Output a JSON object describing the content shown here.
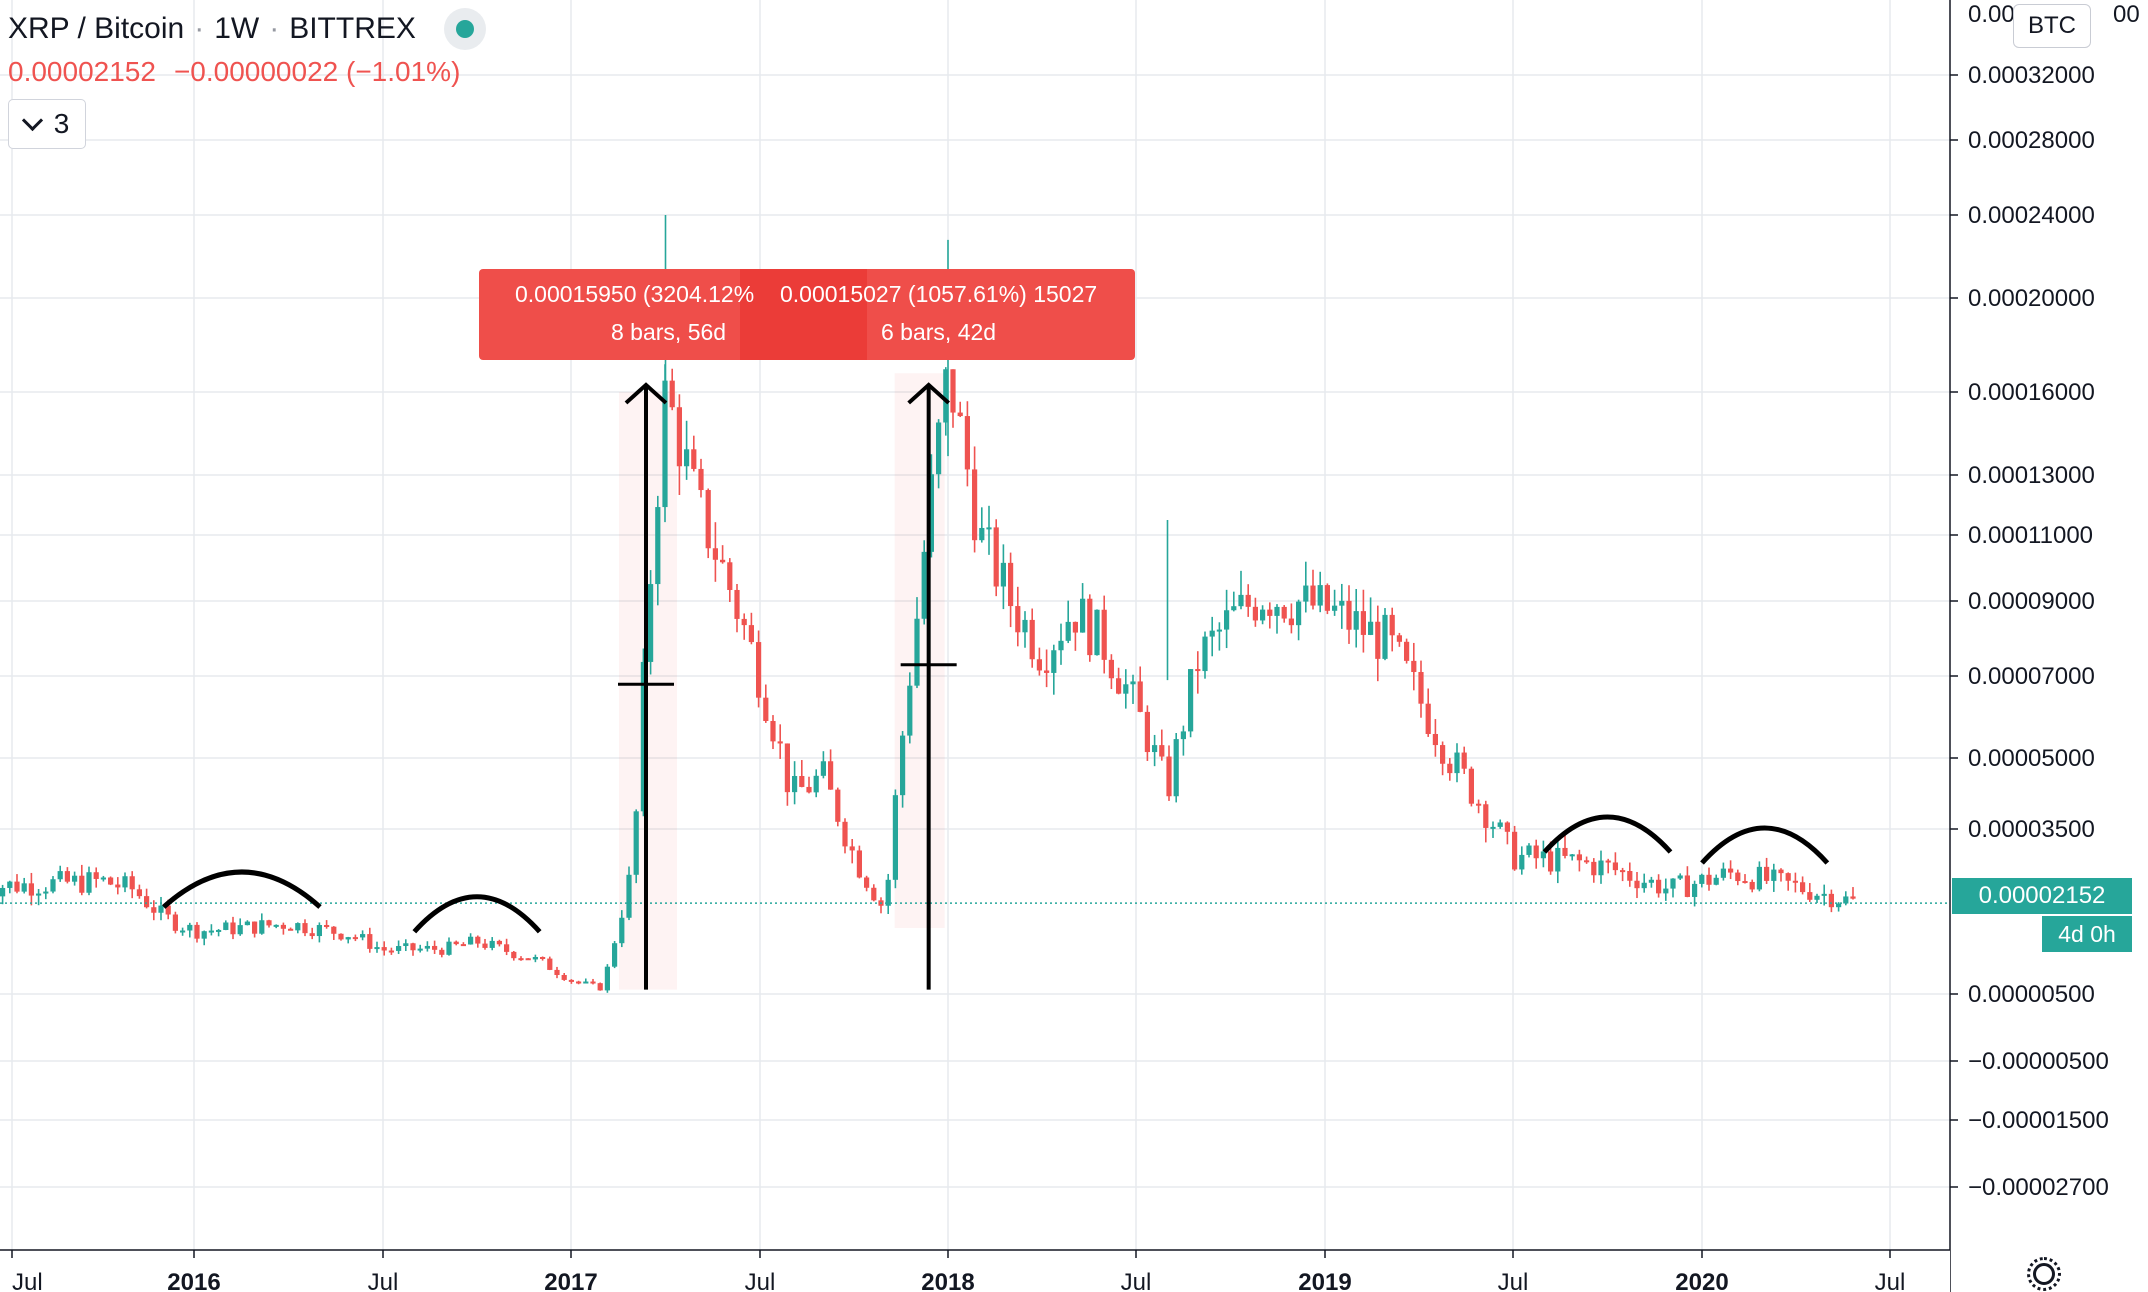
{
  "header": {
    "symbol": "XRP / Bitcoin",
    "interval": "1W",
    "exchange": "BITTREX",
    "status_color": "#26a69a"
  },
  "quote": {
    "last": "0.00002152",
    "change": "−0.00000022",
    "change_pct": "(−1.01%)"
  },
  "collapse_button": {
    "count": "3"
  },
  "currency_badge": "BTC",
  "last_price_label": "0.00002152",
  "countdown_label": "4d 0h",
  "measure": {
    "first": {
      "price": "0.00015950 (3204.12%",
      "bars": "8 bars, 56d"
    },
    "second": {
      "price": "0.00015027 (1057.61%) 15027",
      "bars": "6 bars, 42d"
    }
  },
  "colors": {
    "up": "#26a69a",
    "down": "#ef5350",
    "grid": "#e7eaee",
    "text": "#131722"
  },
  "chart_data": {
    "type": "candlestick",
    "title": "XRP / Bitcoin · 1W · BITTREX",
    "y_ticks": [
      "0.00032000",
      "0.00028000",
      "0.00024000",
      "0.00020000",
      "0.00016000",
      "0.00013000",
      "0.00011000",
      "0.00009000",
      "0.00007000",
      "0.00005000",
      "0.00003500",
      "0.00000500",
      "−0.00000500",
      "−0.00001500",
      "−0.00002700"
    ],
    "y_top_partial": "0.00",
    "y_top_partial_end": "00",
    "x_ticks": [
      {
        "label": "Jul",
        "bold": false,
        "date": "2015-07"
      },
      {
        "label": "2016",
        "bold": true,
        "date": "2016-01"
      },
      {
        "label": "Jul",
        "bold": false,
        "date": "2016-07"
      },
      {
        "label": "2017",
        "bold": true,
        "date": "2017-01"
      },
      {
        "label": "Jul",
        "bold": false,
        "date": "2017-07"
      },
      {
        "label": "2018",
        "bold": true,
        "date": "2018-01"
      },
      {
        "label": "Jul",
        "bold": false,
        "date": "2018-07"
      },
      {
        "label": "2019",
        "bold": true,
        "date": "2019-01"
      },
      {
        "label": "Jul",
        "bold": false,
        "date": "2019-07"
      },
      {
        "label": "2020",
        "bold": true,
        "date": "2020-01"
      },
      {
        "label": "Jul",
        "bold": false,
        "date": "2020-07"
      }
    ],
    "series_close_path": [
      [
        "2015-06",
        2.45e-05
      ],
      [
        "2015-08",
        2.5e-05
      ],
      [
        "2015-10",
        2.55e-05
      ],
      [
        "2015-11",
        2.4e-05
      ],
      [
        "2015-12",
        1.9e-05
      ],
      [
        "2016-01",
        1.65e-05
      ],
      [
        "2016-02",
        1.68e-05
      ],
      [
        "2016-04",
        1.78e-05
      ],
      [
        "2016-06",
        1.58e-05
      ],
      [
        "2016-07",
        1.3e-05
      ],
      [
        "2016-09",
        1.32e-05
      ],
      [
        "2016-10",
        1.45e-05
      ],
      [
        "2016-12",
        1.1e-05
      ],
      [
        "2017-01",
        7.5e-06
      ],
      [
        "2017-02",
        6e-06
      ],
      [
        "2017-03",
        2.9e-05
      ],
      [
        "2017-04",
        0.00016
      ],
      [
        "2017-05",
        0.00012
      ],
      [
        "2017-06",
        9.5e-05
      ],
      [
        "2017-07",
        7e-05
      ],
      [
        "2017-08",
        4.2e-05
      ],
      [
        "2017-09",
        4.6e-05
      ],
      [
        "2017-10",
        3e-05
      ],
      [
        "2017-11",
        2e-05
      ],
      [
        "2017-12",
        8.5e-05
      ],
      [
        "2018-01",
        0.000168
      ],
      [
        "2018-02",
        0.00011
      ],
      [
        "2018-03",
        9e-05
      ],
      [
        "2018-04",
        7.6e-05
      ],
      [
        "2018-05",
        8.8e-05
      ],
      [
        "2018-06",
        7.8e-05
      ],
      [
        "2018-07",
        6.2e-05
      ],
      [
        "2018-08",
        4.3e-05
      ],
      [
        "2018-09",
        7.5e-05
      ],
      [
        "2018-10",
        8.5e-05
      ],
      [
        "2018-11",
        9.2e-05
      ],
      [
        "2019-01",
        8.8e-05
      ],
      [
        "2019-03",
        7.9e-05
      ],
      [
        "2019-05",
        5e-05
      ],
      [
        "2019-07",
        3e-05
      ],
      [
        "2019-09",
        2.9e-05
      ],
      [
        "2019-10",
        2.8e-05
      ],
      [
        "2019-12",
        2.4e-05
      ],
      [
        "2020-02",
        2.7e-05
      ],
      [
        "2020-04",
        2.45e-05
      ],
      [
        "2020-06",
        2.15e-05
      ]
    ],
    "wick_highs": [
      [
        "2017-04",
        0.00024
      ],
      [
        "2018-01",
        0.000228
      ],
      [
        "2018-08",
        0.000115
      ]
    ],
    "annotations": [
      {
        "type": "arc",
        "from": "2015-12",
        "to": "2016-05"
      },
      {
        "type": "arc",
        "from": "2016-08",
        "to": "2016-12"
      },
      {
        "type": "arc",
        "from": "2019-08",
        "to": "2019-12"
      },
      {
        "type": "arc",
        "from": "2020-01",
        "to": "2020-05"
      },
      {
        "type": "arrow",
        "at": "2017-03"
      },
      {
        "type": "arrow",
        "at": "2017-12"
      }
    ],
    "last_price": 2.152e-05,
    "grid": true
  }
}
